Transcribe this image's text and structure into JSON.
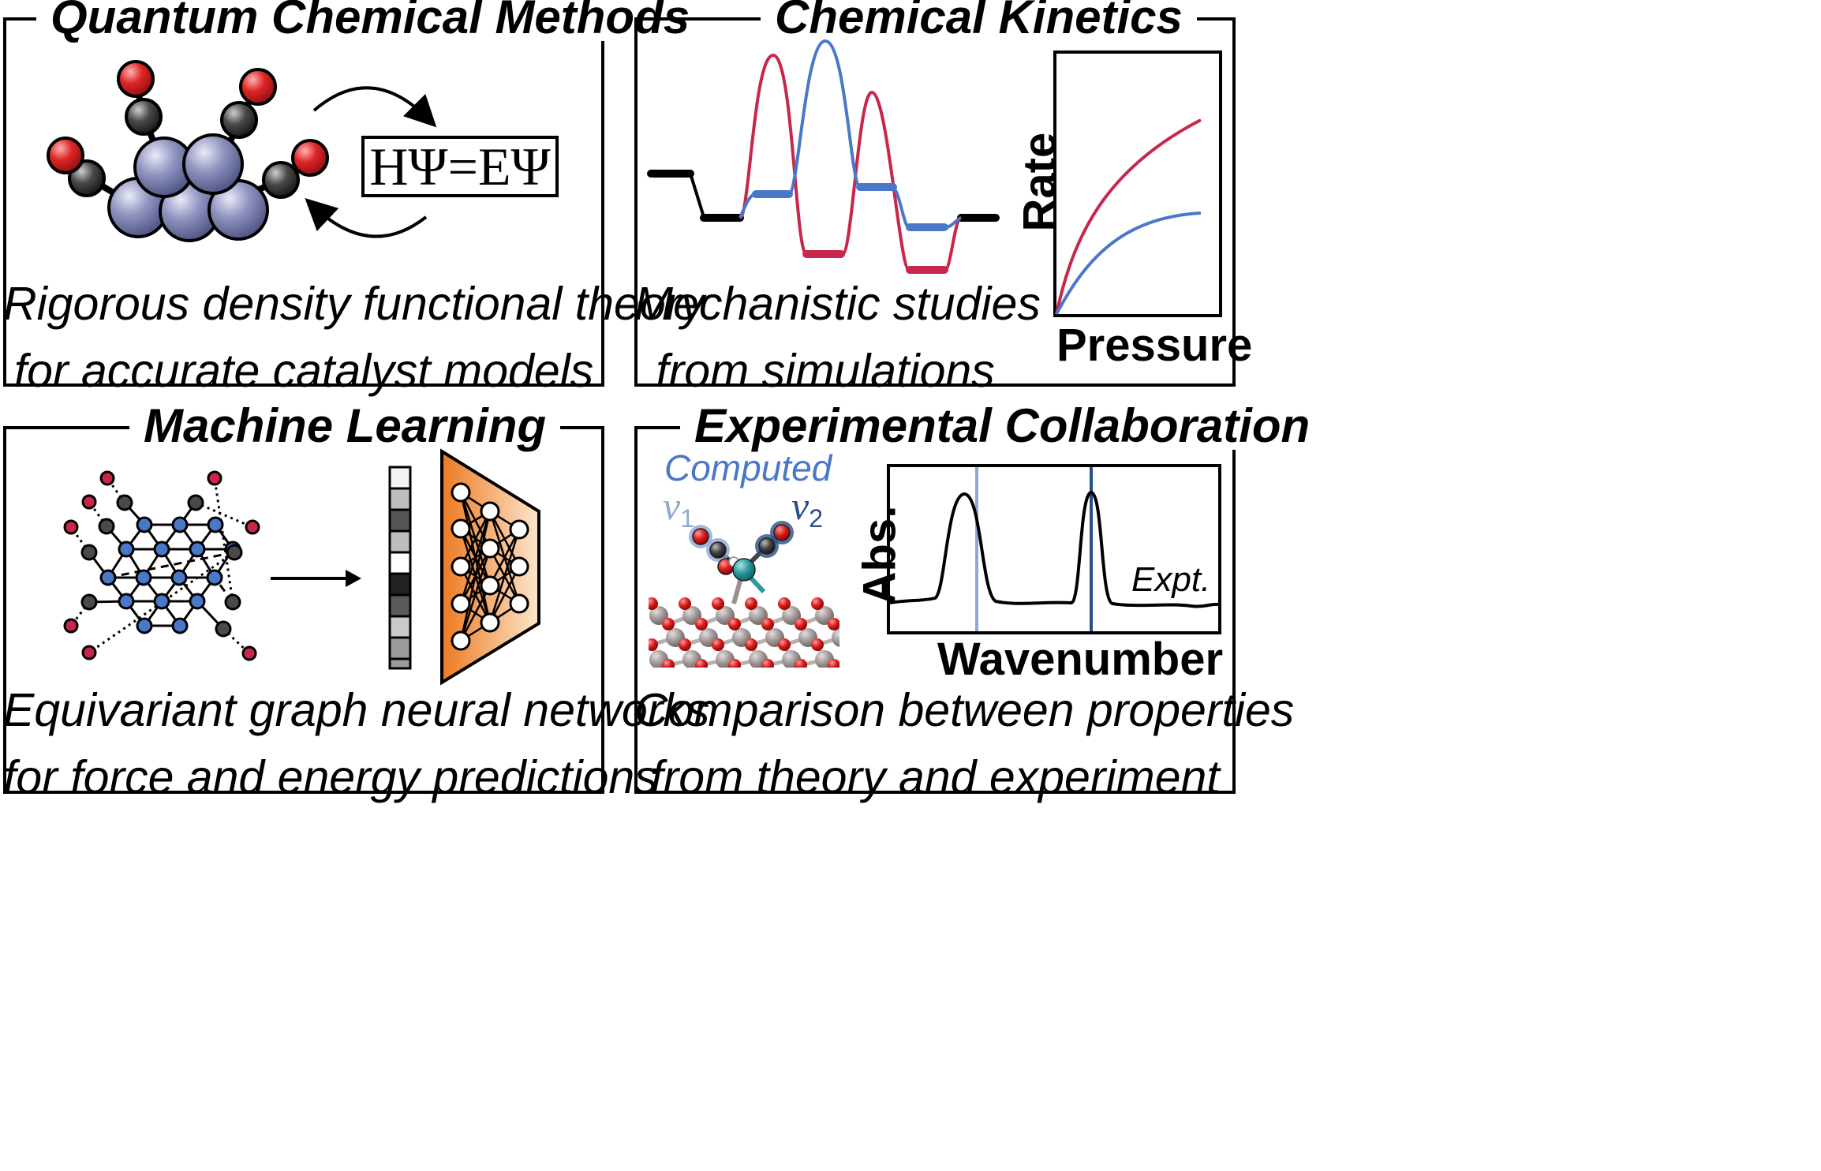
{
  "panels": {
    "qcm": {
      "title": "Quantum Chemical Methods",
      "equation": "HΨ=EΨ",
      "caption": [
        "Rigorous density functional theory",
        "for accurate catalyst models"
      ]
    },
    "kinetics": {
      "title": "Chemical Kinetics",
      "caption": [
        "Mechanistic studies",
        "from simulations"
      ],
      "rate_plot": {
        "ylabel": "Rate",
        "xlabel": "Pressure"
      }
    },
    "ml": {
      "title": "Machine Learning",
      "caption": [
        "Equivariant graph neural networks",
        "for force and energy predictions"
      ]
    },
    "expt": {
      "title": "Experimental Collaboration",
      "computed_label": "Computed",
      "nu1": "ν",
      "nu1_sub": "1",
      "nu2": "ν",
      "nu2_sub": "2",
      "spectrum": {
        "ylabel": "Abs.",
        "xlabel": "Wavenumber",
        "trace_label": "Expt."
      },
      "caption": [
        "Comparison between properties",
        "from theory and experiment"
      ]
    }
  },
  "colors": {
    "red": "#c8264a",
    "blue": "#4a78c8",
    "light_blue": "#8fa8d6",
    "dark_blue": "#284e8a",
    "metal": "#7074a6",
    "orange": "#ee8a3a"
  }
}
